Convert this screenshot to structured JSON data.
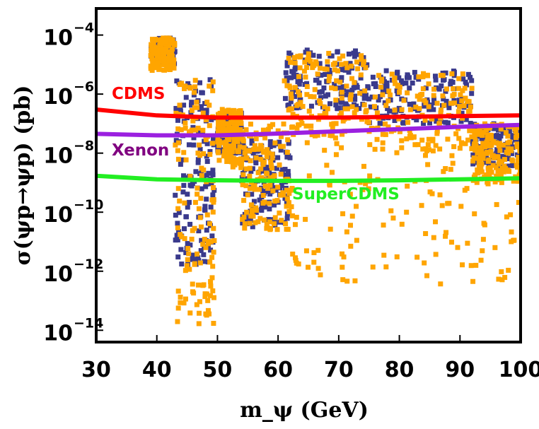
{
  "chart_data": {
    "type": "scatter",
    "title": "",
    "xlabel": "m_ψ (GeV)",
    "ylabel": "σ(ψp→ψp) (pb)",
    "xlim": [
      30,
      100
    ],
    "ylim_log10": [
      -14.4,
      -3.1
    ],
    "yscale": "log",
    "x_ticks": [
      30,
      40,
      50,
      60,
      70,
      80,
      90,
      100
    ],
    "y_ticks": [
      {
        "exp": -4,
        "base": "10",
        "sup": "−4"
      },
      {
        "exp": -6,
        "base": "10",
        "sup": "−6"
      },
      {
        "exp": -8,
        "base": "10",
        "sup": "−8"
      },
      {
        "exp": -10,
        "base": "10",
        "sup": "−10"
      },
      {
        "exp": -12,
        "base": "10",
        "sup": "−12"
      },
      {
        "exp": -14,
        "base": "10",
        "sup": "−14"
      }
    ],
    "curves": [
      {
        "name": "CDMS",
        "color": "#ff0000",
        "points": [
          [
            30,
            3e-07
          ],
          [
            40,
            1.9e-07
          ],
          [
            50,
            1.6e-07
          ],
          [
            60,
            1.6e-07
          ],
          [
            70,
            1.6e-07
          ],
          [
            80,
            1.7e-07
          ],
          [
            90,
            1.8e-07
          ],
          [
            100,
            1.9e-07
          ]
        ]
      },
      {
        "name": "Xenon",
        "color": "#9b20e0",
        "points": [
          [
            30,
            4.5e-08
          ],
          [
            40,
            4e-08
          ],
          [
            50,
            4e-08
          ],
          [
            60,
            4.6e-08
          ],
          [
            70,
            5.5e-08
          ],
          [
            80,
            6.5e-08
          ],
          [
            90,
            7.8e-08
          ],
          [
            100,
            9e-08
          ]
        ]
      },
      {
        "name": "SuperCDMS",
        "color": "#22ee22",
        "points": [
          [
            30,
            1.7e-09
          ],
          [
            40,
            1.3e-09
          ],
          [
            50,
            1.2e-09
          ],
          [
            60,
            1.15e-09
          ],
          [
            70,
            1.15e-09
          ],
          [
            80,
            1.2e-09
          ],
          [
            90,
            1.3e-09
          ],
          [
            100,
            1.4e-09
          ]
        ]
      }
    ],
    "curve_labels": [
      {
        "name": "CDMS",
        "color": "#ff0000"
      },
      {
        "name": "Xenon",
        "color": "#800080"
      },
      {
        "name": "SuperCDMS",
        "color": "#22ee22"
      }
    ],
    "scatter_series": [
      {
        "color": "#3a3a8c",
        "regions": [
          {
            "x": [
              39,
              43
            ],
            "y_log10": [
              -5.0,
              -4.1
            ]
          },
          {
            "x": [
              43,
              49.5
            ],
            "y_log10": [
              -11.8,
              -5.5
            ]
          },
          {
            "x": [
              50,
              54
            ],
            "y_log10": [
              -8.0,
              -6.6
            ]
          },
          {
            "x": [
              54,
              62
            ],
            "y_log10": [
              -10.5,
              -7.5
            ]
          },
          {
            "x": [
              61,
              75
            ],
            "y_log10": [
              -6.5,
              -4.5
            ]
          },
          {
            "x": [
              75,
              92
            ],
            "y_log10": [
              -7.0,
              -5.2
            ]
          },
          {
            "x": [
              92,
              100
            ],
            "y_log10": [
              -8.5,
              -7.0
            ]
          }
        ]
      },
      {
        "color": "#ffa500",
        "regions": [
          {
            "x": [
              39,
              43
            ],
            "y_log10": [
              -5.2,
              -4.1
            ]
          },
          {
            "x": [
              43,
              49.5
            ],
            "y_log10": [
              -13.8,
              -5.5
            ]
          },
          {
            "x": [
              50,
              54
            ],
            "y_log10": [
              -8.5,
              -6.5
            ]
          },
          {
            "x": [
              54,
              62
            ],
            "y_log10": [
              -10.6,
              -7.0
            ]
          },
          {
            "x": [
              61,
              75
            ],
            "y_log10": [
              -7.5,
              -4.6
            ]
          },
          {
            "x": [
              75,
              92
            ],
            "y_log10": [
              -8.0,
              -5.3
            ]
          },
          {
            "x": [
              92,
              100
            ],
            "y_log10": [
              -9.0,
              -7.0
            ]
          },
          {
            "x": [
              62,
              100
            ],
            "y_log10": [
              -12.5,
              -7.5
            ]
          }
        ]
      }
    ],
    "grid": false,
    "frame": true
  }
}
